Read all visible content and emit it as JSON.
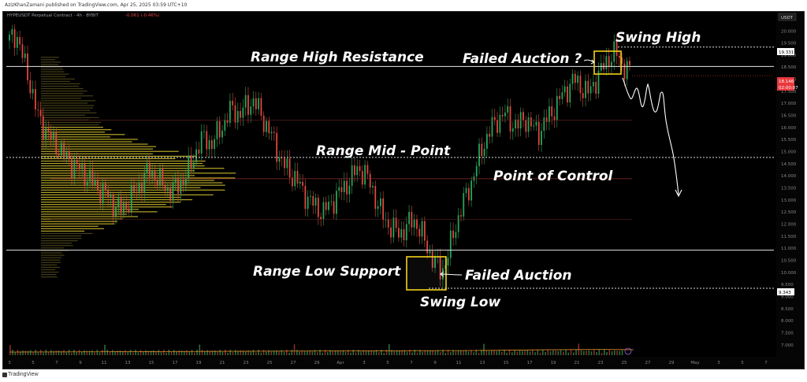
{
  "publisher_line": "AzizKhanZamani published on TradingView.com, Apr 25, 2025 03:59 UTC+10",
  "legend": {
    "symbol": "HYPEUSDT Perpetual Contract · 4h · BYBIT",
    "change": "-0.061 (-0.46%)"
  },
  "currency_badge": "USDT",
  "annotations": {
    "range_high": "Range High Resistance",
    "range_mid": "Range Mid - Point",
    "range_low": "Range Low Support",
    "poc": "Point of Control",
    "failed_auction_top": "Failed Auction ?",
    "failed_auction_bottom": "Failed Auction",
    "swing_high": "Swing High",
    "swing_low": "Swing Low"
  },
  "price_tags": {
    "swing_high": "19.331",
    "current_price": "18.146",
    "countdown": "02:00:07",
    "swing_low": "9.343"
  },
  "footer_brand": "TradingView",
  "chart_data": {
    "type": "candlestick",
    "y_axis_ticks": [
      "20.000",
      "19.500",
      "19.000",
      "18.500",
      "18.000",
      "17.500",
      "17.000",
      "16.500",
      "16.000",
      "15.500",
      "15.000",
      "14.500",
      "14.000",
      "13.500",
      "13.000",
      "12.500",
      "12.000",
      "11.500",
      "11.000",
      "10.500",
      "10.000",
      "9.500",
      "9.000",
      "8.500",
      "8.000",
      "7.500",
      "7.000"
    ],
    "x_axis_ticks": [
      "3",
      "5",
      "7",
      "9",
      "11",
      "13",
      "15",
      "17",
      "19",
      "21",
      "23",
      "25",
      "27",
      "29",
      "Apr",
      "3",
      "5",
      "7",
      "9",
      "11",
      "13",
      "15",
      "17",
      "19",
      "21",
      "23",
      "25",
      "27",
      "29",
      "May",
      "3",
      "5",
      "7"
    ],
    "ylim": [
      6.7,
      20.4
    ],
    "levels": {
      "range_high": 18.53,
      "range_mid": 14.76,
      "range_low": 10.92,
      "swing_high": 19.331,
      "swing_low": 9.343,
      "current": 18.146,
      "poc": 13.88
    },
    "price_path": [
      19.6,
      19.9,
      18.8,
      17.8,
      16.5,
      16.0,
      15.5,
      15.2,
      14.8,
      14.5,
      14.3,
      14.0,
      13.7,
      13.4,
      13.2,
      12.8,
      12.6,
      12.9,
      13.3,
      13.8,
      14.2,
      14.0,
      13.6,
      13.4,
      13.5,
      13.9,
      14.4,
      15.2,
      15.6,
      15.3,
      15.8,
      16.3,
      16.8,
      16.5,
      16.9,
      17.1,
      16.6,
      16.0,
      15.4,
      14.6,
      14.2,
      13.9,
      13.4,
      13.0,
      12.7,
      12.5,
      12.8,
      13.2,
      13.5,
      13.9,
      14.3,
      14.1,
      13.5,
      12.7,
      12.1,
      11.8,
      11.6,
      11.9,
      12.2,
      11.7,
      11.0,
      10.4,
      10.0,
      10.8,
      11.9,
      12.8,
      13.5,
      14.4,
      15.3,
      15.9,
      16.3,
      16.6,
      16.2,
      16.1,
      16.4,
      16.0,
      15.8,
      16.3,
      16.7,
      17.2,
      17.6,
      18.0,
      17.7,
      17.4,
      17.9,
      18.4,
      18.9,
      19.1,
      18.6,
      18.3
    ]
  }
}
